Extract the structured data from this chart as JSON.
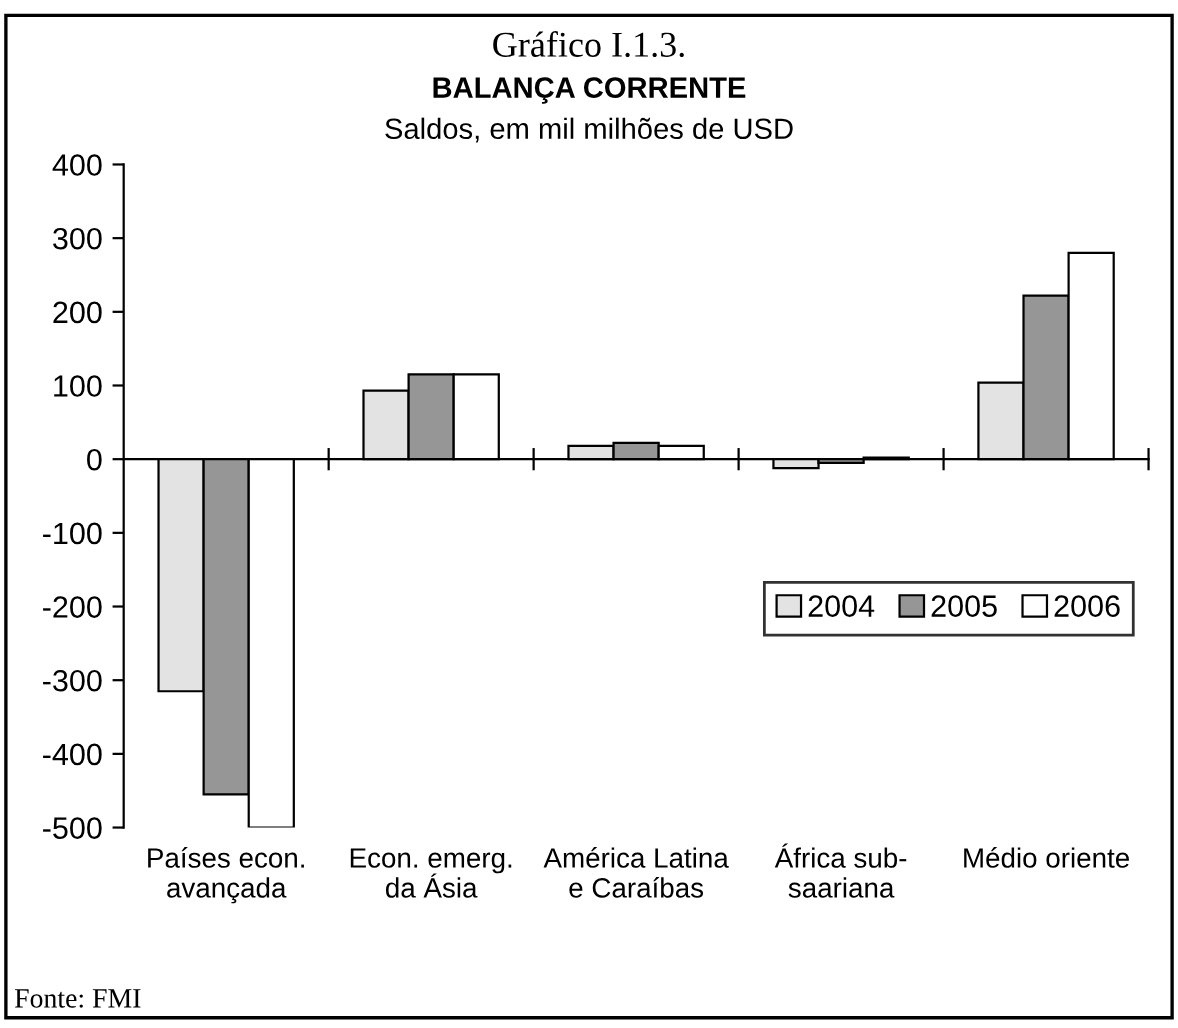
{
  "chart_data": {
    "type": "bar",
    "title": "Gráfico I.1.3.",
    "subtitle": "BALANÇA CORRENTE",
    "ylabel": "Saldos, em mil milhões de USD",
    "categories": [
      "Países econ.\navançada",
      "Econ. emerg.\nda Ásia",
      "América Latina\ne Caraíbas",
      "África sub-\nsaariana",
      "Médio oriente"
    ],
    "series": [
      {
        "name": "2004",
        "color": "#e3e3e3",
        "values": [
          -315,
          93,
          18,
          -12,
          104
        ]
      },
      {
        "name": "2005",
        "color": "#969696",
        "values": [
          -455,
          115,
          22,
          -5,
          222
        ]
      },
      {
        "name": "2006",
        "color": "#ffffff",
        "values": [
          -500,
          115,
          18,
          2,
          280
        ]
      }
    ],
    "ylim": [
      -500,
      400
    ],
    "yticks": [
      -500,
      -400,
      -300,
      -200,
      -100,
      0,
      100,
      200,
      300,
      400
    ],
    "legend": "right",
    "annotations": [
      "Fonte: FMI"
    ]
  }
}
